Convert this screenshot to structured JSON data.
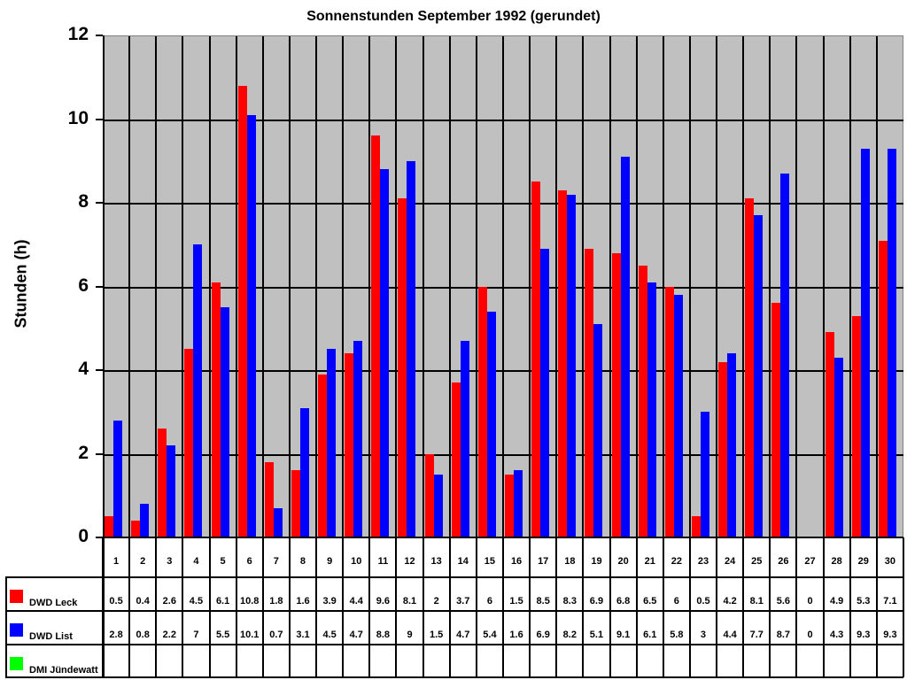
{
  "chart_data": {
    "type": "bar",
    "title": "Sonnenstunden September 1992 (gerundet)",
    "xlabel": "",
    "ylabel": "Stunden (h)",
    "ylim": [
      0,
      12
    ],
    "yticks": [
      0,
      2,
      4,
      6,
      8,
      10,
      12
    ],
    "grid": true,
    "legend_position": "data table (bottom-left)",
    "categories": [
      "1",
      "2",
      "3",
      "4",
      "5",
      "6",
      "7",
      "8",
      "9",
      "10",
      "11",
      "12",
      "13",
      "14",
      "15",
      "16",
      "17",
      "18",
      "19",
      "20",
      "21",
      "22",
      "23",
      "24",
      "25",
      "26",
      "27",
      "28",
      "29",
      "30"
    ],
    "series": [
      {
        "name": "DWD Leck",
        "color": "#ff0000",
        "values": [
          0.5,
          0.4,
          2.6,
          4.5,
          6.1,
          10.8,
          1.8,
          1.6,
          3.9,
          4.4,
          9.6,
          8.1,
          2,
          3.7,
          6,
          1.5,
          8.5,
          8.3,
          6.9,
          6.8,
          6.5,
          6,
          0.5,
          4.2,
          8.1,
          5.6,
          0,
          4.9,
          5.3,
          7.1
        ]
      },
      {
        "name": "DWD List",
        "color": "#0000ff",
        "values": [
          2.8,
          0.8,
          2.2,
          7,
          5.5,
          10.1,
          0.7,
          3.1,
          4.5,
          4.7,
          8.8,
          9,
          1.5,
          4.7,
          5.4,
          1.6,
          6.9,
          8.2,
          5.1,
          9.1,
          6.1,
          5.8,
          3,
          4.4,
          7.7,
          8.7,
          0,
          4.3,
          9.3,
          9.3
        ]
      },
      {
        "name": "DMI Jündewatt",
        "color": "#00ff00",
        "values": [
          null,
          null,
          null,
          null,
          null,
          null,
          null,
          null,
          null,
          null,
          null,
          null,
          null,
          null,
          null,
          null,
          null,
          null,
          null,
          null,
          null,
          null,
          null,
          null,
          null,
          null,
          null,
          null,
          null,
          null
        ]
      }
    ]
  },
  "plot_background": "#c0c0c0"
}
